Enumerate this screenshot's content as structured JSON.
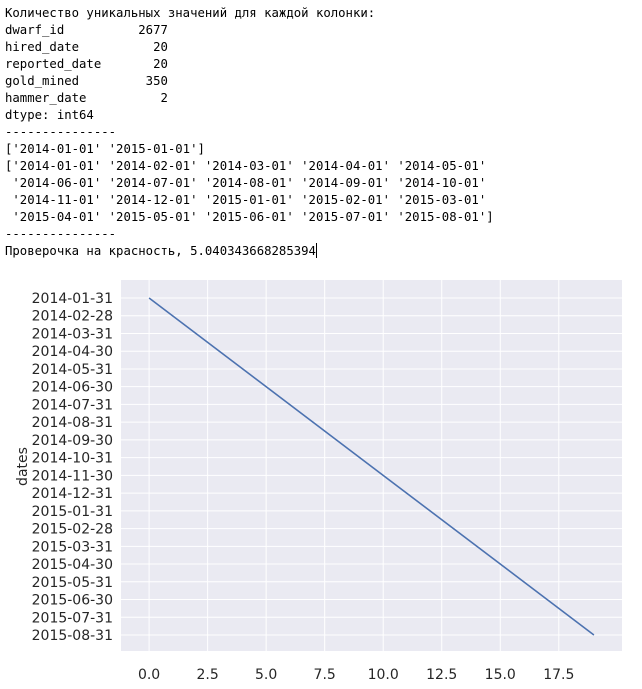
{
  "console": {
    "lines": [
      "Количество уникальных значений для каждой колонки:",
      "dwarf_id          2677",
      "hired_date          20",
      "reported_date       20",
      "gold_mined         350",
      "hammer_date          2",
      "dtype: int64",
      "---------------",
      "['2014-01-01' '2015-01-01']",
      "['2014-01-01' '2014-02-01' '2014-03-01' '2014-04-01' '2014-05-01'",
      " '2014-06-01' '2014-07-01' '2014-08-01' '2014-09-01' '2014-10-01'",
      " '2014-11-01' '2014-12-01' '2015-01-01' '2015-02-01' '2015-03-01'",
      " '2015-04-01' '2015-05-01' '2015-06-01' '2015-07-01' '2015-08-01']",
      "---------------"
    ],
    "last_line": "Проверочка на красность, 5.040343668285394"
  },
  "chart_data": {
    "type": "line",
    "ylabel": "dates",
    "xlabel": "",
    "xlim": [
      -1.2,
      20.2
    ],
    "x_ticks": [
      "0.0",
      "2.5",
      "5.0",
      "7.5",
      "10.0",
      "12.5",
      "15.0",
      "17.5"
    ],
    "y_ticks": [
      "2014-01-31",
      "2014-02-28",
      "2014-03-31",
      "2014-04-30",
      "2014-05-31",
      "2014-06-30",
      "2014-07-31",
      "2014-08-31",
      "2014-09-30",
      "2014-10-31",
      "2014-11-30",
      "2014-12-31",
      "2015-01-31",
      "2015-02-28",
      "2015-03-31",
      "2015-04-30",
      "2015-05-31",
      "2015-06-30",
      "2015-07-31",
      "2015-08-31"
    ],
    "x": [
      0,
      19
    ],
    "y": [
      "2014-01-31",
      "2015-08-31"
    ],
    "grid": true,
    "colors": {
      "background": "#eaeaf2",
      "grid": "#ffffff",
      "line": "#4c72b0"
    }
  }
}
